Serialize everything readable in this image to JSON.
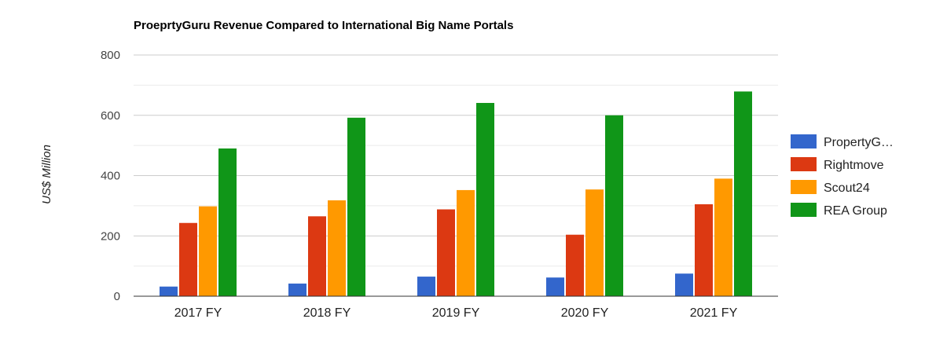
{
  "chart_data": {
    "type": "bar",
    "title": "ProeprtyGuru Revenue Compared to International Big Name Portals",
    "xlabel": "",
    "ylabel": "US$ Million",
    "ylim": [
      0,
      800
    ],
    "yticks": [
      0,
      200,
      400,
      600,
      800
    ],
    "grid": true,
    "legend_position": "right",
    "categories": [
      "2017 FY",
      "2018 FY",
      "2019 FY",
      "2020 FY",
      "2021 FY"
    ],
    "series": [
      {
        "name": "PropertyGuru",
        "legend_label": "PropertyG…",
        "color": "#3366cc",
        "values": [
          32,
          42,
          65,
          62,
          75
        ]
      },
      {
        "name": "Rightmove",
        "legend_label": "Rightmove",
        "color": "#dc3912",
        "values": [
          243,
          265,
          288,
          204,
          305
        ]
      },
      {
        "name": "Scout24",
        "legend_label": "Scout24",
        "color": "#ff9900",
        "values": [
          298,
          318,
          352,
          354,
          390
        ]
      },
      {
        "name": "REA Group",
        "legend_label": "REA Group",
        "color": "#109618",
        "values": [
          490,
          592,
          641,
          600,
          679
        ]
      }
    ]
  }
}
